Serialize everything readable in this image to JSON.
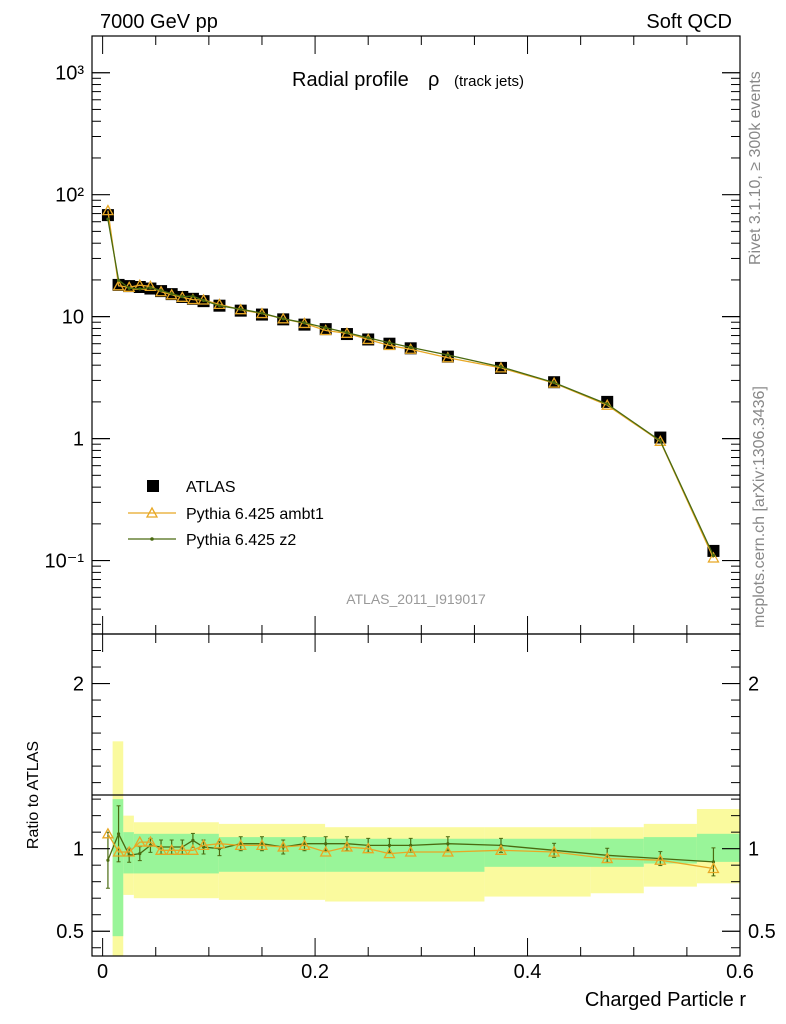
{
  "header": {
    "left": "7000 GeV pp",
    "right": "Soft QCD"
  },
  "side_labels": {
    "rivet": "Rivet 3.1.10, ≥ 300k events",
    "site": "mcplots.cern.ch [arXiv:1306.3436]"
  },
  "chart_data": {
    "type": "line",
    "title": "Radial profile",
    "title_symbol": "ρ",
    "title_suffix": "(track jets)",
    "analysis_id": "ATLAS_2011_I919017",
    "xlabel": "Charged Particle r",
    "ylabel_ratio": "Ratio to ATLAS",
    "xlim": [
      -0.01,
      0.6
    ],
    "ylim_main": [
      0.025,
      2000
    ],
    "ylim_ratio": [
      0.35,
      2.3
    ],
    "yscale_main": "log",
    "x_ticks": [
      "0",
      "0.2",
      "0.4",
      "0.6"
    ],
    "y_main_ticks": [
      "10³",
      "10²",
      "10",
      "1",
      "10⁻¹"
    ],
    "y_ratio_ticks": [
      "2",
      "1",
      "0.5"
    ],
    "legend_position": "lower-left",
    "x": [
      0.005,
      0.015,
      0.025,
      0.035,
      0.045,
      0.055,
      0.065,
      0.075,
      0.085,
      0.095,
      0.11,
      0.13,
      0.15,
      0.17,
      0.19,
      0.21,
      0.23,
      0.25,
      0.27,
      0.29,
      0.325,
      0.375,
      0.425,
      0.475,
      0.525,
      0.575
    ],
    "series": [
      {
        "name": "ATLAS",
        "style": "markers",
        "color": "#000000",
        "values": [
          68,
          18.2,
          17.8,
          17.5,
          17.0,
          16.2,
          15.3,
          14.5,
          14.0,
          13.4,
          12.3,
          11.2,
          10.4,
          9.5,
          8.6,
          7.9,
          7.2,
          6.5,
          6.0,
          5.5,
          4.7,
          3.8,
          2.9,
          2.0,
          1.02,
          0.12
        ]
      },
      {
        "name": "Pythia 6.425 ambt1",
        "style": "triangles",
        "color": "#e8a825",
        "values": [
          74,
          17.9,
          17.4,
          18.1,
          17.7,
          16.0,
          15.1,
          14.4,
          13.8,
          13.7,
          12.6,
          11.4,
          10.6,
          9.6,
          8.8,
          7.7,
          7.3,
          6.5,
          5.8,
          5.4,
          4.6,
          3.8,
          2.85,
          1.88,
          0.95,
          0.105
        ]
      },
      {
        "name": "Pythia 6.425 z2",
        "style": "line",
        "color": "#4a6a10",
        "values": [
          63,
          19.9,
          17.1,
          16.9,
          17.3,
          16.4,
          15.4,
          14.6,
          14.7,
          13.6,
          12.3,
          11.5,
          10.7,
          9.6,
          8.9,
          8.1,
          7.4,
          6.7,
          6.1,
          5.6,
          4.85,
          3.87,
          2.88,
          1.92,
          0.96,
          0.11
        ]
      }
    ],
    "ratio_series": [
      {
        "name": "Pythia 6.425 ambt1",
        "values": [
          1.09,
          0.98,
          0.98,
          1.04,
          1.04,
          0.99,
          0.99,
          0.99,
          0.99,
          1.02,
          1.03,
          1.02,
          1.02,
          1.01,
          1.02,
          0.98,
          1.01,
          1.0,
          0.97,
          0.98,
          0.98,
          0.99,
          0.98,
          0.94,
          0.93,
          0.88
        ]
      },
      {
        "name": "Pythia 6.425 z2",
        "values": [
          0.93,
          1.09,
          0.96,
          0.97,
          1.02,
          1.01,
          1.01,
          1.01,
          1.05,
          1.01,
          1.0,
          1.03,
          1.03,
          1.01,
          1.03,
          1.03,
          1.03,
          1.02,
          1.02,
          1.02,
          1.03,
          1.02,
          0.99,
          0.96,
          0.94,
          0.92
        ]
      }
    ],
    "band_inner": [
      [
        0.0,
        0.01,
        0.47,
        1.3
      ],
      [
        0.01,
        0.02,
        0.85,
        1.1
      ],
      [
        0.02,
        0.1,
        0.85,
        1.09
      ],
      [
        0.1,
        0.2,
        0.86,
        1.07
      ],
      [
        0.2,
        0.35,
        0.86,
        1.06
      ],
      [
        0.35,
        0.5,
        0.89,
        1.06
      ],
      [
        0.5,
        0.55,
        0.91,
        1.07
      ],
      [
        0.55,
        0.6,
        0.92,
        1.09
      ]
    ],
    "band_outer": [
      [
        0.0,
        0.01,
        0.35,
        1.65
      ],
      [
        0.01,
        0.02,
        0.72,
        1.2
      ],
      [
        0.02,
        0.1,
        0.7,
        1.16
      ],
      [
        0.1,
        0.2,
        0.69,
        1.15
      ],
      [
        0.2,
        0.35,
        0.68,
        1.13
      ],
      [
        0.35,
        0.45,
        0.71,
        1.13
      ],
      [
        0.45,
        0.5,
        0.73,
        1.13
      ],
      [
        0.5,
        0.55,
        0.77,
        1.15
      ],
      [
        0.55,
        0.6,
        0.79,
        1.24
      ]
    ],
    "colors": {
      "band_inner": "#99f599",
      "band_outer": "#fafa9e"
    }
  }
}
